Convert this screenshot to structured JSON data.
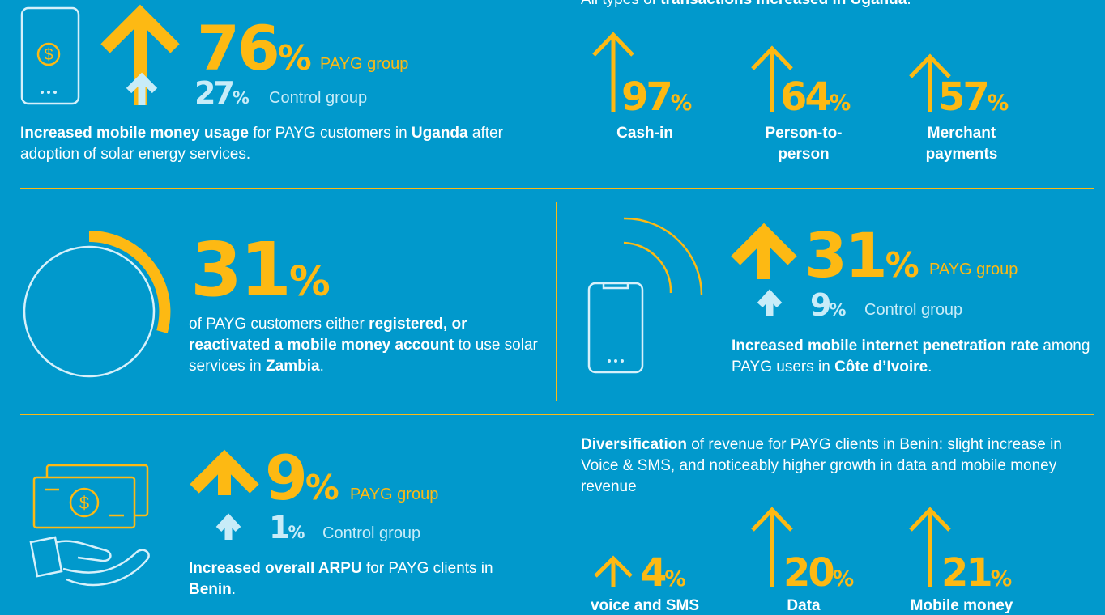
{
  "uganda_usage": {
    "payg": {
      "value": 76,
      "unit": "%",
      "label": "PAYG group"
    },
    "control": {
      "value": 27,
      "unit": "%",
      "label": "Control group"
    },
    "caption": [
      {
        "text": "Increased mobile money usage",
        "bold": true
      },
      {
        "text": " for PAYG customers in ",
        "bold": false
      },
      {
        "text": "Uganda",
        "bold": true
      },
      {
        "text": " after adoption of solar energy services.",
        "bold": false
      }
    ]
  },
  "uganda_transactions": {
    "intro": [
      {
        "text": "All types of ",
        "bold": false
      },
      {
        "text": "transactions increased in Uganda",
        "bold": true
      },
      {
        "text": ".",
        "bold": false
      }
    ],
    "items": [
      {
        "value": 97,
        "unit": "%",
        "label": "Cash-in"
      },
      {
        "value": 64,
        "unit": "%",
        "label": "Person-to-person"
      },
      {
        "value": 57,
        "unit": "%",
        "label": "Merchant payments"
      }
    ]
  },
  "zambia": {
    "value": 31,
    "unit": "%",
    "caption": [
      {
        "text": "of PAYG customers either ",
        "bold": false
      },
      {
        "text": "registered, or reactivated a mobile money account",
        "bold": true
      },
      {
        "text": " to use solar services in ",
        "bold": false
      },
      {
        "text": "Zambia",
        "bold": true
      },
      {
        "text": ".",
        "bold": false
      }
    ]
  },
  "cote_divoire": {
    "payg": {
      "value": 31,
      "unit": "%",
      "label": "PAYG group"
    },
    "control": {
      "value": 9,
      "unit": "%",
      "label": "Control group"
    },
    "caption": [
      {
        "text": "Increased mobile internet penetration rate",
        "bold": true
      },
      {
        "text": " among PAYG users in ",
        "bold": false
      },
      {
        "text": "Côte d’Ivoire",
        "bold": true
      },
      {
        "text": ".",
        "bold": false
      }
    ]
  },
  "benin_arpu": {
    "payg": {
      "value": 9,
      "unit": "%",
      "label": "PAYG group"
    },
    "control": {
      "value": 1,
      "unit": "%",
      "label": "Control group"
    },
    "caption": [
      {
        "text": "Increased overall ARPU",
        "bold": true
      },
      {
        "text": " for PAYG clients in ",
        "bold": false
      },
      {
        "text": "Benin",
        "bold": true
      },
      {
        "text": ".",
        "bold": false
      }
    ]
  },
  "benin_revenue": {
    "intro": [
      {
        "text": "Diversification",
        "bold": true
      },
      {
        "text": " of revenue for PAYG clients in Benin: slight increase in Voice & SMS, and noticeably higher growth in data and mobile money revenue",
        "bold": false
      }
    ],
    "items": [
      {
        "value": 4,
        "unit": "%",
        "label": "voice and SMS"
      },
      {
        "value": 20,
        "unit": "%",
        "label": "Data"
      },
      {
        "value": 21,
        "unit": "%",
        "label": "Mobile money"
      }
    ]
  }
}
